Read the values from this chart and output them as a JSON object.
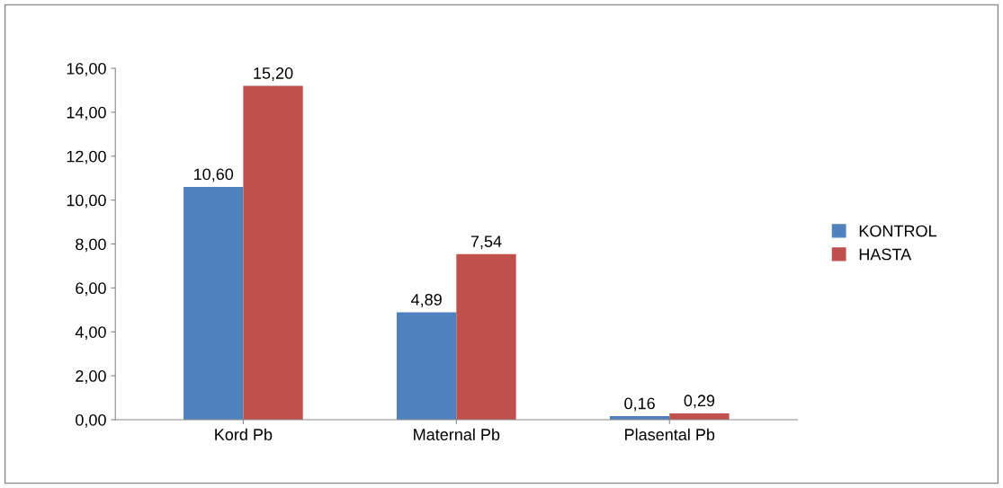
{
  "chart_data": {
    "type": "bar",
    "categories": [
      "Kord Pb",
      "Maternal Pb",
      "Plasental Pb"
    ],
    "series": [
      {
        "name": "KONTROL",
        "color": "#4f81bd",
        "values": [
          10.6,
          4.89,
          0.16
        ],
        "value_labels": [
          "10,60",
          "4,89",
          "0,16"
        ]
      },
      {
        "name": "HASTA",
        "color": "#c0504d",
        "values": [
          15.2,
          7.54,
          0.29
        ],
        "value_labels": [
          "15,20",
          "7,54",
          "0,29"
        ]
      }
    ],
    "ylim": [
      0,
      16
    ],
    "yticks": [
      {
        "value": 0,
        "label": "0,00"
      },
      {
        "value": 2,
        "label": "2,00"
      },
      {
        "value": 4,
        "label": "4,00"
      },
      {
        "value": 6,
        "label": "6,00"
      },
      {
        "value": 8,
        "label": "8,00"
      },
      {
        "value": 10,
        "label": "10,00"
      },
      {
        "value": 12,
        "label": "12,00"
      },
      {
        "value": 14,
        "label": "14,00"
      },
      {
        "value": 16,
        "label": "16,00"
      }
    ],
    "grid": false,
    "legend": "right"
  }
}
